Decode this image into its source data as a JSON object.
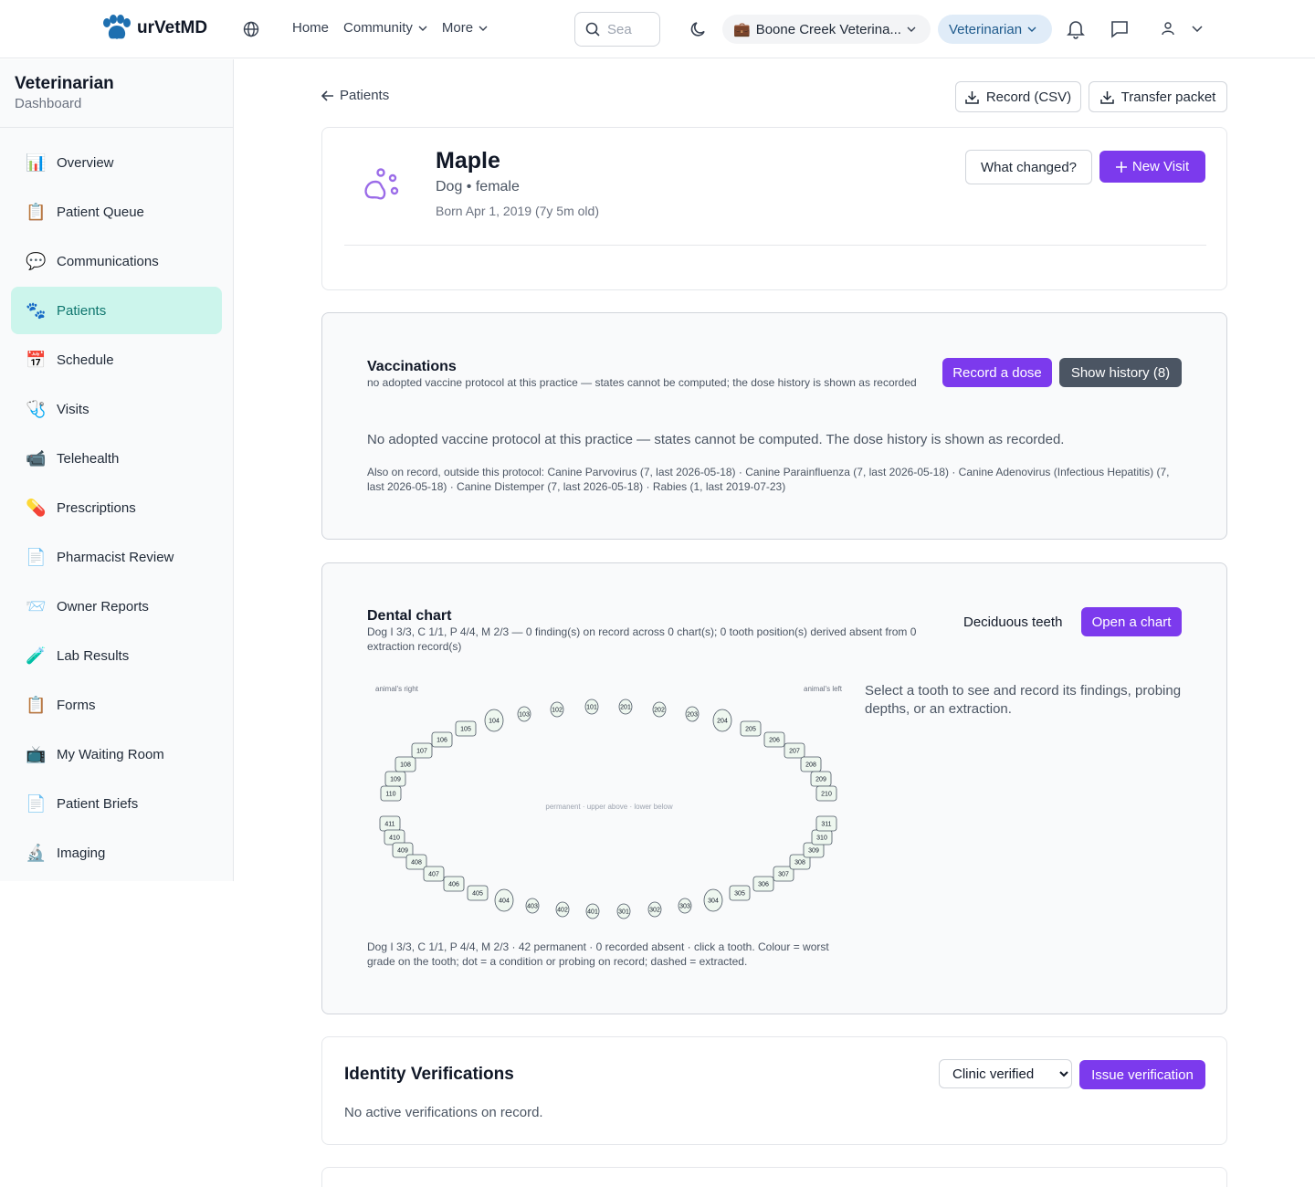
{
  "brand": {
    "name": "urVetMD"
  },
  "nav": {
    "home": "Home",
    "community": "Community",
    "more": "More"
  },
  "search": {
    "placeholder": "Sea"
  },
  "clinic": {
    "label": "Boone Creek Veterina..."
  },
  "role": {
    "label": "Veterinarian"
  },
  "sidebar": {
    "title": "Veterinarian",
    "subtitle": "Dashboard",
    "items": [
      {
        "label": "Overview",
        "icon": "📊",
        "active": false
      },
      {
        "label": "Patient Queue",
        "icon": "📋",
        "active": false
      },
      {
        "label": "Communications",
        "icon": "💬",
        "active": false
      },
      {
        "label": "Patients",
        "icon": "🐾",
        "active": true
      },
      {
        "label": "Schedule",
        "icon": "📅",
        "active": false
      },
      {
        "label": "Visits",
        "icon": "🩺",
        "active": false
      },
      {
        "label": "Telehealth",
        "icon": "📹",
        "active": false
      },
      {
        "label": "Prescriptions",
        "icon": "💊",
        "active": false
      },
      {
        "label": "Pharmacist Review",
        "icon": "📄",
        "active": false
      },
      {
        "label": "Owner Reports",
        "icon": "📨",
        "active": false
      },
      {
        "label": "Lab Results",
        "icon": "🧪",
        "active": false
      },
      {
        "label": "Forms",
        "icon": "📋",
        "active": false
      },
      {
        "label": "My Waiting Room",
        "icon": "📺",
        "active": false
      },
      {
        "label": "Patient Briefs",
        "icon": "📄",
        "active": false
      },
      {
        "label": "Imaging",
        "icon": "🔬",
        "active": false
      }
    ]
  },
  "page": {
    "back_label": "Patients",
    "record_csv": "Record (CSV)",
    "transfer_packet": "Transfer packet"
  },
  "patient": {
    "name": "Maple",
    "species_sex": "Dog • female",
    "born": "Born Apr 1, 2019 (7y 5m old)",
    "what_changed": "What changed?",
    "new_visit": "New Visit"
  },
  "vaccinations": {
    "title": "Vaccinations",
    "subtitle": "no adopted vaccine protocol at this practice — states cannot be computed; the dose history is shown as recorded",
    "record_dose": "Record a dose",
    "show_history": "Show history (8)",
    "message": "No adopted vaccine protocol at this practice — states cannot be computed. The dose history is shown as recorded.",
    "also_on_record": "Also on record, outside this protocol: Canine Parvovirus (7, last 2026-05-18) · Canine Parainfluenza (7, last 2026-05-18) · Canine Adenovirus (Infectious Hepatitis) (7, last 2026-05-18) · Canine Distemper (7, last 2026-05-18) · Rabies (1, last 2019-07-23)"
  },
  "dental": {
    "title": "Dental chart",
    "subtitle": "Dog I 3/3, C 1/1, P 4/4, M 2/3 — 0 finding(s) on record across 0 chart(s); 0 tooth position(s) derived absent from 0 extraction record(s)",
    "deciduous": "Deciduous teeth",
    "open_chart": "Open a chart",
    "animal_right": "animal's right",
    "animal_left": "animal's left",
    "center_label": "permanent · upper above · lower below",
    "help": "Select a tooth to see and record its findings, probing depths, or an extraction.",
    "legend": "Dog I 3/3, C 1/1, P 4/4, M 2/3 · 42 permanent · 0 recorded absent · click a tooth. Colour = worst grade on the tooth; dot = a condition or probing on record; dashed = extracted.",
    "upper_teeth": [
      "110",
      "109",
      "108",
      "107",
      "106",
      "105",
      "104",
      "103",
      "102",
      "101",
      "201",
      "202",
      "203",
      "204",
      "205",
      "206",
      "207",
      "208",
      "209",
      "210"
    ],
    "lower_teeth": [
      "411",
      "410",
      "409",
      "408",
      "407",
      "406",
      "405",
      "404",
      "403",
      "402",
      "401",
      "301",
      "302",
      "303",
      "304",
      "305",
      "306",
      "307",
      "308",
      "309",
      "310",
      "311"
    ]
  },
  "identity": {
    "title": "Identity Verifications",
    "select_value": "Clinic verified",
    "issue": "Issue verification",
    "empty": "No active verifications on record."
  }
}
